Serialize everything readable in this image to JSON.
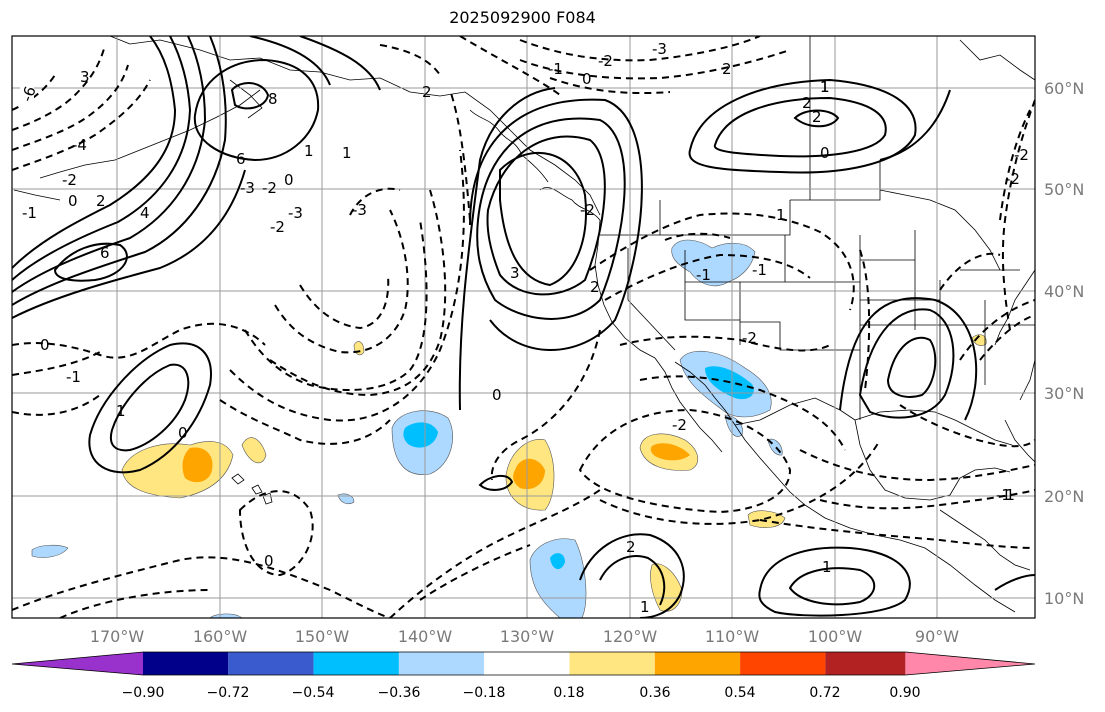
{
  "title": "2025092900 F084",
  "lat_labels": [
    "60°N",
    "50°N",
    "40°N",
    "30°N",
    "20°N",
    "10°N"
  ],
  "lon_labels": [
    "170°W",
    "160°W",
    "150°W",
    "140°W",
    "130°W",
    "120°W",
    "110°W",
    "100°W",
    "90°W"
  ],
  "colorbar": {
    "colors": [
      "#9932cc",
      "#00008b",
      "#3a5bcd",
      "#00bfff",
      "#add8ff",
      "#ffffff",
      "#ffe680",
      "#ffa500",
      "#ff4500",
      "#b22222",
      "#ff88aa"
    ],
    "ticks": [
      "−0.90",
      "−0.72",
      "−0.54",
      "−0.36",
      "−0.18",
      "0.18",
      "0.36",
      "0.54",
      "0.72",
      "0.90"
    ]
  },
  "contour_labels": [
    "-6",
    "3",
    "-4",
    "-2",
    "0",
    "-1",
    "2",
    "8",
    "6",
    "4",
    "6",
    "-3",
    "-2",
    "0",
    "1",
    "-2",
    "-3",
    "-3",
    "1",
    "2",
    "-2",
    "2",
    "-3",
    "0",
    "-1",
    "1",
    "0",
    "0",
    "2",
    "1",
    "2",
    "0",
    "1",
    "-2",
    "-1",
    "1",
    "2",
    "-1",
    "-1",
    "-2",
    "-2",
    "-1",
    "-2",
    "2",
    "1",
    "1",
    "-1",
    "-2",
    "3",
    "0",
    "0"
  ]
}
